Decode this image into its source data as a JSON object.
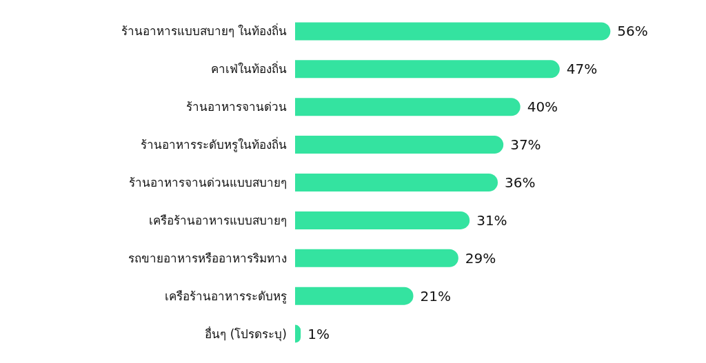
{
  "chart_data": {
    "type": "bar",
    "orientation": "horizontal",
    "categories": [
      "ร้านอาหารแบบสบายๆ ในท้องถิ่น",
      "คาเฟ่ในท้องถิ่น",
      "ร้านอาหารจานด่วน",
      "ร้านอาหารระดับหรูในท้องถิ่น",
      "ร้านอาหารจานด่วนแบบสบายๆ",
      "เครือร้านอาหารแบบสบายๆ",
      "รถขายอาหารหรืออาหารริมทาง",
      "เครือร้านอาหารระดับหรู",
      "อื่นๆ (โปรดระบุ)"
    ],
    "values": [
      56,
      47,
      40,
      37,
      36,
      31,
      29,
      21,
      1
    ],
    "value_labels": [
      "56%",
      "47%",
      "40%",
      "37%",
      "36%",
      "31%",
      "29%",
      "21%",
      "1%"
    ],
    "color": "#34e3a0"
  }
}
